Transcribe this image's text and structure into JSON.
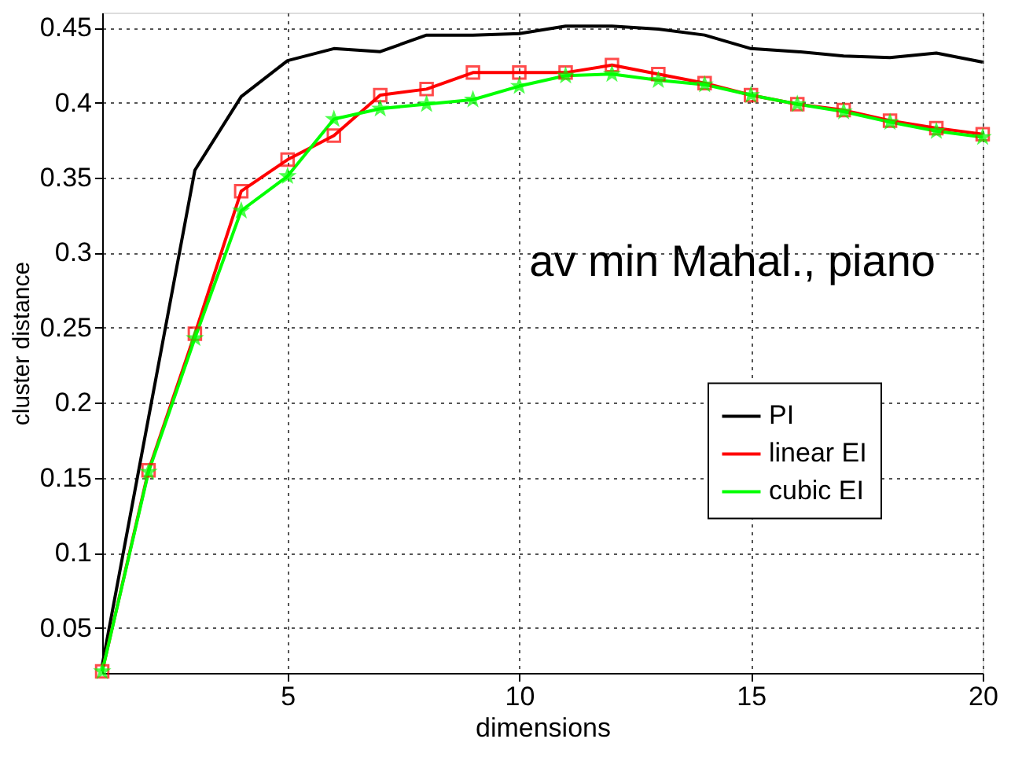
{
  "chart_data": {
    "type": "line",
    "xlabel": "dimensions",
    "ylabel": "cluster distance",
    "annotations": [
      "av min Mahal., piano"
    ],
    "x": [
      1,
      2,
      3,
      4,
      5,
      6,
      7,
      8,
      9,
      10,
      11,
      12,
      13,
      14,
      15,
      16,
      17,
      18,
      19,
      20
    ],
    "xlim": [
      1,
      20
    ],
    "xticks": [
      5,
      10,
      15,
      20
    ],
    "ylim": [
      0.02,
      0.46
    ],
    "yticks": [
      0.05,
      0.1,
      0.15,
      0.2,
      0.25,
      0.3,
      0.35,
      0.4,
      0.45
    ],
    "grid": true,
    "legend": "right",
    "line_style": "solid",
    "series": [
      {
        "name": "PI",
        "color": "#000000",
        "marker": "none",
        "values": [
          0.025,
          0.19,
          0.355,
          0.404,
          0.428,
          0.436,
          0.434,
          0.445,
          0.445,
          0.446,
          0.451,
          0.451,
          0.449,
          0.445,
          0.436,
          0.434,
          0.431,
          0.43,
          0.433,
          0.427
        ]
      },
      {
        "name": "linear EI",
        "color": "#ff0000",
        "marker": "square",
        "values": [
          0.021,
          0.155,
          0.246,
          0.341,
          0.362,
          0.378,
          0.405,
          0.409,
          0.42,
          0.42,
          0.42,
          0.425,
          0.419,
          0.413,
          0.405,
          0.399,
          0.395,
          0.388,
          0.383,
          0.379
        ]
      },
      {
        "name": "cubic EI",
        "color": "#00ff00",
        "marker": "star",
        "values": [
          0.021,
          0.154,
          0.243,
          0.328,
          0.351,
          0.389,
          0.396,
          0.399,
          0.402,
          0.411,
          0.418,
          0.419,
          0.415,
          0.412,
          0.405,
          0.399,
          0.394,
          0.387,
          0.381,
          0.377
        ]
      }
    ]
  }
}
